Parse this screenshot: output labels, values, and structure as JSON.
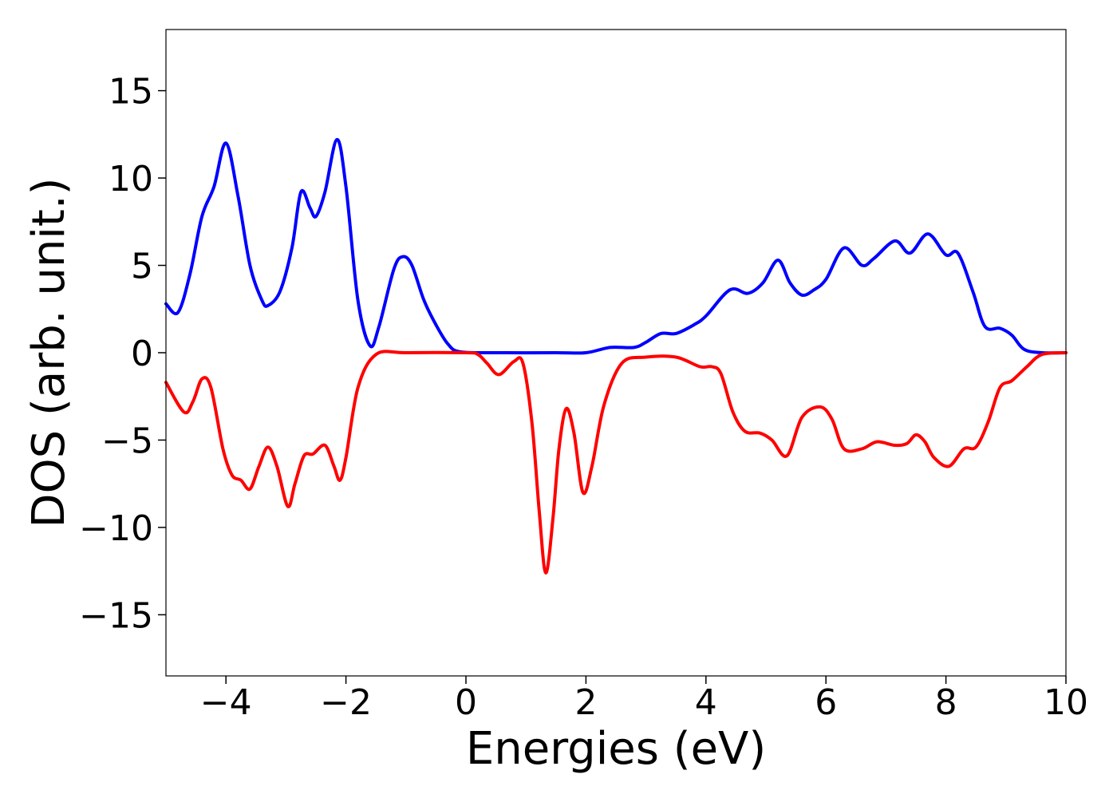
{
  "chart_data": {
    "type": "line",
    "title": "",
    "xlabel": "Energies (eV)",
    "ylabel": "DOS (arb. unit.)",
    "xlim": [
      -5,
      10
    ],
    "ylim": [
      -18.5,
      18.5
    ],
    "xticks": [
      -4,
      -2,
      0,
      2,
      4,
      6,
      8,
      10
    ],
    "xtick_labels": [
      "−4",
      "−2",
      "0",
      "2",
      "4",
      "6",
      "8",
      "10"
    ],
    "yticks": [
      -15,
      -10,
      -5,
      0,
      5,
      10,
      15
    ],
    "ytick_labels": [
      "−15",
      "−10",
      "−5",
      "0",
      "5",
      "10",
      "15"
    ],
    "grid": false,
    "legend": "none",
    "series": [
      {
        "color": "#0000ff",
        "points": [
          [
            -5.0,
            2.8
          ],
          [
            -4.8,
            2.3
          ],
          [
            -4.6,
            4.5
          ],
          [
            -4.4,
            7.8
          ],
          [
            -4.2,
            9.5
          ],
          [
            -4.0,
            12.0
          ],
          [
            -3.8,
            9.0
          ],
          [
            -3.6,
            5.0
          ],
          [
            -3.4,
            3.0
          ],
          [
            -3.3,
            2.7
          ],
          [
            -3.1,
            3.5
          ],
          [
            -2.9,
            6.0
          ],
          [
            -2.75,
            9.2
          ],
          [
            -2.6,
            8.3
          ],
          [
            -2.5,
            7.8
          ],
          [
            -2.35,
            9.2
          ],
          [
            -2.15,
            12.2
          ],
          [
            -2.0,
            9.5
          ],
          [
            -1.8,
            3.0
          ],
          [
            -1.6,
            0.4
          ],
          [
            -1.45,
            1.5
          ],
          [
            -1.2,
            4.8
          ],
          [
            -1.05,
            5.5
          ],
          [
            -0.9,
            5.0
          ],
          [
            -0.7,
            3.0
          ],
          [
            -0.5,
            1.6
          ],
          [
            -0.3,
            0.5
          ],
          [
            -0.1,
            0.05
          ],
          [
            0.5,
            0.0
          ],
          [
            1.5,
            0.0
          ],
          [
            2.0,
            0.0
          ],
          [
            2.4,
            0.3
          ],
          [
            2.8,
            0.3
          ],
          [
            3.0,
            0.6
          ],
          [
            3.25,
            1.1
          ],
          [
            3.5,
            1.1
          ],
          [
            3.8,
            1.6
          ],
          [
            4.0,
            2.1
          ],
          [
            4.4,
            3.6
          ],
          [
            4.7,
            3.4
          ],
          [
            4.95,
            4.0
          ],
          [
            5.2,
            5.3
          ],
          [
            5.4,
            4.0
          ],
          [
            5.6,
            3.3
          ],
          [
            5.8,
            3.6
          ],
          [
            6.0,
            4.2
          ],
          [
            6.3,
            6.0
          ],
          [
            6.6,
            5.0
          ],
          [
            6.8,
            5.4
          ],
          [
            7.15,
            6.4
          ],
          [
            7.4,
            5.7
          ],
          [
            7.7,
            6.8
          ],
          [
            8.0,
            5.6
          ],
          [
            8.2,
            5.7
          ],
          [
            8.45,
            3.5
          ],
          [
            8.65,
            1.5
          ],
          [
            8.9,
            1.4
          ],
          [
            9.1,
            1.0
          ],
          [
            9.3,
            0.2
          ],
          [
            9.6,
            0.0
          ],
          [
            10.0,
            0.0
          ]
        ]
      },
      {
        "color": "#ff0000",
        "points": [
          [
            -5.0,
            -1.7
          ],
          [
            -4.7,
            -3.4
          ],
          [
            -4.55,
            -2.8
          ],
          [
            -4.4,
            -1.5
          ],
          [
            -4.25,
            -2.0
          ],
          [
            -4.05,
            -5.5
          ],
          [
            -3.9,
            -7.0
          ],
          [
            -3.75,
            -7.3
          ],
          [
            -3.6,
            -7.8
          ],
          [
            -3.45,
            -6.5
          ],
          [
            -3.3,
            -5.4
          ],
          [
            -3.15,
            -6.5
          ],
          [
            -2.97,
            -8.8
          ],
          [
            -2.85,
            -7.5
          ],
          [
            -2.7,
            -5.9
          ],
          [
            -2.55,
            -5.8
          ],
          [
            -2.35,
            -5.3
          ],
          [
            -2.2,
            -6.5
          ],
          [
            -2.1,
            -7.3
          ],
          [
            -2.0,
            -6.0
          ],
          [
            -1.8,
            -2.0
          ],
          [
            -1.5,
            -0.1
          ],
          [
            -1.0,
            0.0
          ],
          [
            0.0,
            0.0
          ],
          [
            0.2,
            -0.1
          ],
          [
            0.35,
            -0.6
          ],
          [
            0.55,
            -1.25
          ],
          [
            0.8,
            -0.5
          ],
          [
            0.95,
            -0.6
          ],
          [
            1.1,
            -4.0
          ],
          [
            1.22,
            -9.0
          ],
          [
            1.33,
            -12.6
          ],
          [
            1.45,
            -9.5
          ],
          [
            1.55,
            -5.5
          ],
          [
            1.67,
            -3.2
          ],
          [
            1.8,
            -4.6
          ],
          [
            1.95,
            -8.0
          ],
          [
            2.1,
            -6.5
          ],
          [
            2.3,
            -3.0
          ],
          [
            2.6,
            -0.6
          ],
          [
            3.0,
            -0.25
          ],
          [
            3.5,
            -0.25
          ],
          [
            3.9,
            -0.8
          ],
          [
            4.1,
            -0.8
          ],
          [
            4.25,
            -1.2
          ],
          [
            4.45,
            -3.4
          ],
          [
            4.65,
            -4.5
          ],
          [
            4.9,
            -4.6
          ],
          [
            5.1,
            -5.0
          ],
          [
            5.35,
            -5.9
          ],
          [
            5.6,
            -3.7
          ],
          [
            5.9,
            -3.1
          ],
          [
            6.1,
            -3.8
          ],
          [
            6.3,
            -5.5
          ],
          [
            6.6,
            -5.5
          ],
          [
            6.85,
            -5.1
          ],
          [
            7.15,
            -5.3
          ],
          [
            7.35,
            -5.2
          ],
          [
            7.5,
            -4.7
          ],
          [
            7.65,
            -5.1
          ],
          [
            7.8,
            -6.0
          ],
          [
            8.05,
            -6.5
          ],
          [
            8.3,
            -5.5
          ],
          [
            8.5,
            -5.4
          ],
          [
            8.7,
            -4.0
          ],
          [
            8.9,
            -2.0
          ],
          [
            9.1,
            -1.6
          ],
          [
            9.35,
            -0.8
          ],
          [
            9.6,
            -0.1
          ],
          [
            10.0,
            0.0
          ]
        ]
      }
    ]
  }
}
